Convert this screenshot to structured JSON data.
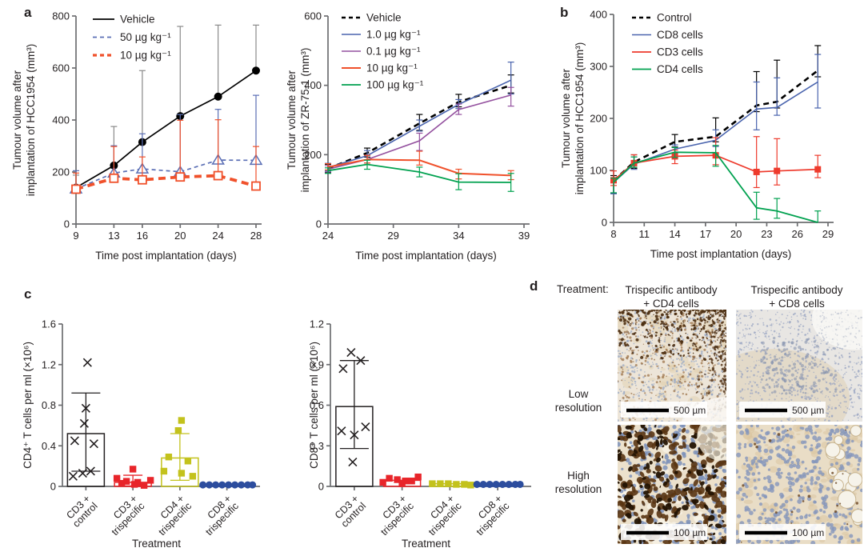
{
  "panels": {
    "a": {
      "label": "a"
    },
    "b": {
      "label": "b"
    },
    "c": {
      "label": "c"
    },
    "d": {
      "label": "d"
    }
  },
  "chart_data": [
    {
      "id": "hcc1954-dose-response",
      "panel": "a",
      "type": "line",
      "ylabel": "Tumour volume after implantation of HCC1954 (mm³)",
      "ylabel_lines": [
        "Tumour volume after",
        "implantation of HCC1954 (mm³)"
      ],
      "xlabel": "Time post implantation (days)",
      "xlim": [
        9,
        28
      ],
      "ylim": [
        0,
        800
      ],
      "xticks": [
        9,
        13,
        16,
        20,
        24,
        28
      ],
      "yticks": [
        0,
        200,
        400,
        600,
        800
      ],
      "x": [
        9,
        13,
        16,
        20,
        24,
        28
      ],
      "series": [
        {
          "name": "Vehicle",
          "color": "#000000",
          "err_color": "#8a8a8a",
          "dash": null,
          "width": 1.7,
          "marker": "circle-filled",
          "values": [
            140,
            225,
            315,
            415,
            490,
            590
          ],
          "err_up": [
            48,
            150,
            275,
            345,
            275,
            175
          ],
          "err_down": [
            22,
            10,
            8,
            8,
            8,
            8
          ]
        },
        {
          "name": "50 µg kg⁻¹",
          "color": "#5b6fb5",
          "dash": "5,4",
          "width": 1.7,
          "marker": "triangle-open",
          "values": [
            135,
            196,
            212,
            201,
            246,
            245
          ],
          "err_up": [
            70,
            105,
            135,
            220,
            195,
            250
          ],
          "err_down": [
            15,
            8,
            8,
            8,
            8,
            8
          ]
        },
        {
          "name": "10 µg kg⁻¹",
          "color": "#f0512b",
          "dash": "9,6",
          "width": 3.8,
          "marker": "square-open",
          "values": [
            134,
            176,
            170,
            181,
            186,
            146
          ],
          "err_up": [
            62,
            122,
            88,
            218,
            215,
            152
          ],
          "err_down": [
            14,
            8,
            8,
            8,
            8,
            8
          ]
        }
      ]
    },
    {
      "id": "zr-75-1-dose-response",
      "panel": "a",
      "type": "line",
      "ylabel": "Tumour volume after implantation of ZR-75-1 (mm³)",
      "ylabel_lines": [
        "Tumour volume after",
        "implantation of ZR-75-1 (mm³)"
      ],
      "xlabel": "Time post implantation (days)",
      "xlim": [
        24,
        39
      ],
      "ylim": [
        0,
        600
      ],
      "xticks": [
        24,
        29,
        34,
        39
      ],
      "yticks": [
        0,
        200,
        400,
        600
      ],
      "x": [
        24,
        27,
        31,
        34,
        38
      ],
      "series": [
        {
          "name": "Vehicle",
          "color": "#000000",
          "dash": "7,5",
          "width": 2.6,
          "marker": "none",
          "values": [
            160,
            205,
            290,
            352,
            400
          ],
          "err_up": [
            12,
            14,
            26,
            22,
            30
          ],
          "err_down": [
            12,
            12,
            20,
            14,
            22
          ]
        },
        {
          "name": "1.0 µg kg⁻¹",
          "color": "#4a64ae",
          "dash": null,
          "width": 1.6,
          "marker": "none",
          "values": [
            163,
            197,
            282,
            345,
            415
          ],
          "err_up": [
            12,
            15,
            18,
            14,
            52
          ],
          "err_down": [
            10,
            12,
            14,
            12,
            40
          ]
        },
        {
          "name": "0.1 µg kg⁻¹",
          "color": "#94519f",
          "dash": null,
          "width": 1.6,
          "marker": "none",
          "values": [
            158,
            186,
            240,
            330,
            372
          ],
          "err_up": [
            10,
            12,
            22,
            16,
            22
          ],
          "err_down": [
            8,
            10,
            28,
            14,
            32
          ]
        },
        {
          "name": "10 µg kg⁻¹",
          "color": "#f0512b",
          "dash": null,
          "width": 2.0,
          "marker": "none",
          "values": [
            164,
            186,
            184,
            146,
            140
          ],
          "err_up": [
            10,
            12,
            26,
            12,
            14
          ],
          "err_down": [
            8,
            10,
            14,
            16,
            12
          ]
        },
        {
          "name": "100 µg kg⁻¹",
          "color": "#00a14f",
          "dash": null,
          "width": 1.8,
          "marker": "none",
          "values": [
            154,
            172,
            150,
            121,
            120
          ],
          "err_up": [
            8,
            12,
            14,
            24,
            26
          ],
          "err_down": [
            8,
            14,
            14,
            22,
            26
          ]
        }
      ]
    },
    {
      "id": "hcc1954-adoptive-transfer",
      "panel": "b",
      "type": "line",
      "ylabel": "Tumour volume after implantation of HCC1954 (mm³)",
      "ylabel_lines": [
        "Tumour volume after",
        "implantation of HCC1954 (mm³)"
      ],
      "xlabel": "Time post implantation (days)",
      "xlim": [
        8,
        29
      ],
      "ylim": [
        0,
        400
      ],
      "xticks": [
        8,
        11,
        14,
        17,
        20,
        23,
        26,
        29
      ],
      "yticks": [
        0,
        100,
        200,
        300,
        400
      ],
      "x": [
        8,
        10,
        14,
        18,
        22,
        24,
        28
      ],
      "series": [
        {
          "name": "Control",
          "color": "#000000",
          "dash": "7,5",
          "width": 2.6,
          "marker": "none",
          "values": [
            80,
            116,
            155,
            165,
            225,
            232,
            292
          ],
          "err_up": [
            10,
            14,
            14,
            36,
            65,
            80,
            48
          ],
          "err_down": [
            24,
            12,
            10,
            10,
            12,
            12,
            12
          ]
        },
        {
          "name": "CD8 cells",
          "color": "#4a64ae",
          "dash": null,
          "width": 1.6,
          "marker": "none",
          "values": [
            77,
            112,
            141,
            158,
            218,
            221,
            270
          ],
          "err_up": [
            8,
            14,
            8,
            20,
            52,
            57,
            53
          ],
          "err_down": [
            22,
            10,
            8,
            12,
            40,
            15,
            50
          ]
        },
        {
          "name": "CD3 cells",
          "color": "#ee3a2c",
          "dash": null,
          "width": 1.7,
          "marker": "square-filled",
          "values": [
            81,
            114,
            127,
            129,
            97,
            99,
            102
          ],
          "err_up": [
            18,
            16,
            12,
            34,
            68,
            62,
            27
          ],
          "err_down": [
            10,
            8,
            14,
            18,
            30,
            27,
            16
          ]
        },
        {
          "name": "CD4 cells",
          "color": "#00a14f",
          "dash": null,
          "width": 1.8,
          "marker": "none",
          "values": [
            77,
            114,
            135,
            134,
            28,
            22,
            0
          ],
          "err_up": [
            8,
            12,
            9,
            14,
            30,
            24,
            22
          ],
          "err_down": [
            20,
            8,
            10,
            26,
            22,
            14,
            0
          ]
        }
      ]
    },
    {
      "id": "cd4-t-cell-counts",
      "panel": "c",
      "type": "scatter-bar",
      "ylabel": "CD4⁺ T cells per ml (×10⁶)",
      "xlabel": "Treatment",
      "ylim": [
        0,
        1.6
      ],
      "yticks": [
        0,
        0.4,
        0.8,
        1.2,
        1.6
      ],
      "categories": [
        [
          "CD3 +",
          "control"
        ],
        [
          "CD3 +",
          "trispecific"
        ],
        [
          "CD4 +",
          "trispecific"
        ],
        [
          "CD8 +",
          "trispecific"
        ]
      ],
      "groups": [
        {
          "name": "CD3 + control",
          "color": "#231f20",
          "marker": "x",
          "bar": 0.52,
          "err_low": 0.15,
          "err_high": 0.92,
          "points": [
            1.22,
            0.77,
            0.62,
            0.45,
            0.42,
            0.15,
            0.13,
            0.1
          ]
        },
        {
          "name": "CD3 + trispecific",
          "color": "#e8252a",
          "marker": "square",
          "bar": 0.04,
          "err_low": 0.005,
          "err_high": 0.11,
          "points": [
            0.17,
            0.08,
            0.06,
            0.05,
            0.04,
            0.03,
            0.02,
            0.01
          ]
        },
        {
          "name": "CD4 + trispecific",
          "color": "#c3c21d",
          "marker": "square",
          "bar": 0.28,
          "err_low": 0.06,
          "err_high": 0.52,
          "points": [
            0.65,
            0.55,
            0.29,
            0.25,
            0.15,
            0.13,
            0.1
          ]
        },
        {
          "name": "CD8 + trispecific",
          "color": "#2c4d9e",
          "marker": "circle",
          "bar": 0.012,
          "err_low": null,
          "err_high": null,
          "points": [
            0.015,
            0.015,
            0.015,
            0.015,
            0.015,
            0.015,
            0.015,
            0.015,
            0.015
          ]
        }
      ]
    },
    {
      "id": "cd8-t-cell-counts",
      "panel": "c",
      "type": "scatter-bar",
      "ylabel": "CD8⁺ T cells per ml (×10⁶)",
      "xlabel": "Treatment",
      "ylim": [
        0,
        1.2
      ],
      "yticks": [
        0,
        0.3,
        0.6,
        0.9,
        1.2
      ],
      "categories": [
        [
          "CD3 +",
          "control"
        ],
        [
          "CD3 +",
          "trispecific"
        ],
        [
          "CD4 +",
          "trispecific"
        ],
        [
          "CD8 +",
          "trispecific"
        ]
      ],
      "groups": [
        {
          "name": "CD3 + control",
          "color": "#231f20",
          "marker": "x",
          "bar": 0.59,
          "err_low": 0.28,
          "err_high": 0.93,
          "points": [
            0.99,
            0.93,
            0.87,
            0.44,
            0.41,
            0.38,
            0.18
          ]
        },
        {
          "name": "CD3 + trispecific",
          "color": "#e8252a",
          "marker": "square",
          "bar": 0.045,
          "err_low": null,
          "err_high": null,
          "points": [
            0.07,
            0.06,
            0.05,
            0.04,
            0.04,
            0.03,
            0.02
          ]
        },
        {
          "name": "CD4 + trispecific",
          "color": "#c3c21d",
          "marker": "square",
          "bar": 0.02,
          "err_low": null,
          "err_high": null,
          "points": [
            0.02,
            0.02,
            0.02,
            0.015,
            0.015,
            0.01
          ]
        },
        {
          "name": "CD8 + trispecific",
          "color": "#2c4d9e",
          "marker": "circle",
          "bar": 0.012,
          "err_low": null,
          "err_high": null,
          "points": [
            0.015,
            0.015,
            0.015,
            0.015,
            0.015,
            0.015,
            0.015,
            0.015
          ]
        }
      ]
    }
  ],
  "panel_d": {
    "treatment_label": "Treatment:",
    "column_lines": [
      [
        "Trispecific antibody",
        "+ CD4 cells"
      ],
      [
        "Trispecific antibody",
        "+ CD8 cells"
      ]
    ],
    "row_lines": [
      [
        "Low",
        "resolution"
      ],
      [
        "High",
        "resolution"
      ]
    ],
    "images": [
      {
        "name": "low-resolution-cd4",
        "scale_bar": "500 µm"
      },
      {
        "name": "low-resolution-cd8",
        "scale_bar": "500 µm"
      },
      {
        "name": "high-resolution-cd4",
        "scale_bar": "100 µm"
      },
      {
        "name": "high-resolution-cd8",
        "scale_bar": "100 µm"
      }
    ]
  }
}
